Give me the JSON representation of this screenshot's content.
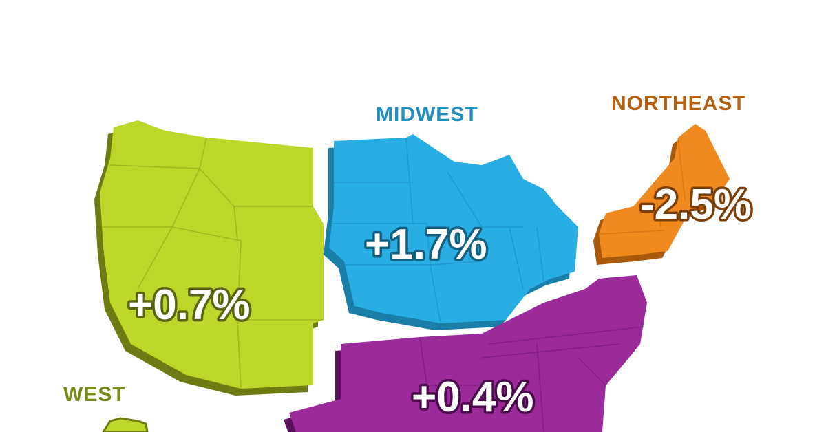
{
  "regions": {
    "west": {
      "name": "WEST",
      "change": "+0.7%",
      "color": "#bdd62a",
      "shadow": "#6e7a12",
      "label_color": "#7a8a16"
    },
    "midwest": {
      "name": "MIDWEST",
      "change": "+1.7%",
      "color": "#29aee4",
      "shadow": "#1a7fa8",
      "label_color": "#1f8fbf"
    },
    "northeast": {
      "name": "NORTHEAST",
      "change": "-2.5%",
      "color": "#f08a1e",
      "shadow": "#a85a0a",
      "label_color": "#b5600f"
    },
    "south": {
      "change": "+0.4%",
      "color": "#9b2a9b",
      "shadow": "#5e1060"
    }
  }
}
